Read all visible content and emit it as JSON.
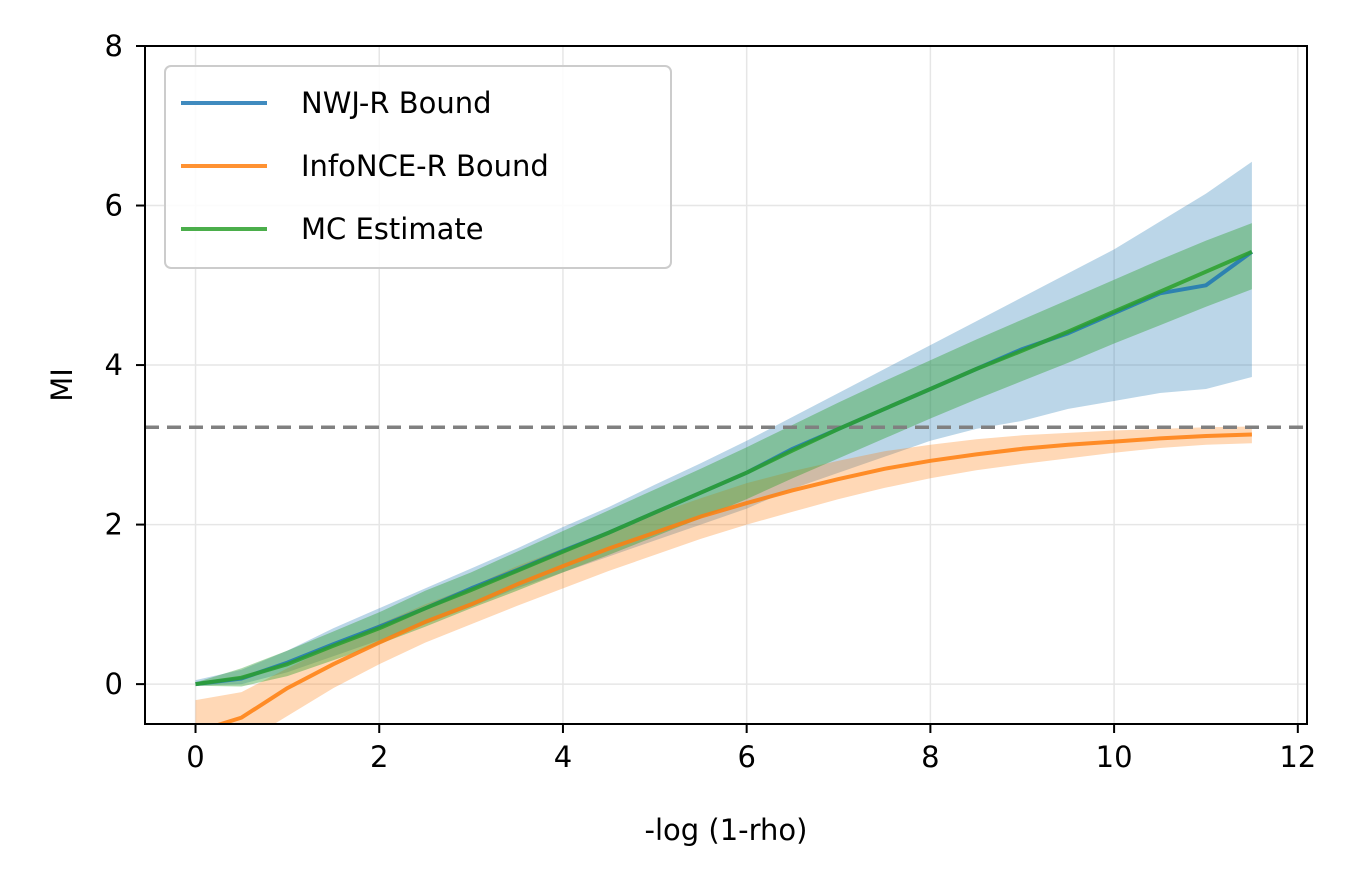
{
  "chart_data": {
    "type": "line",
    "title": "",
    "xlabel": "-log (1-rho)",
    "ylabel": "MI",
    "xlim": [
      -0.55,
      12.1
    ],
    "ylim": [
      -0.5,
      8
    ],
    "xticks": [
      "0",
      "2",
      "4",
      "6",
      "8",
      "10",
      "12"
    ],
    "yticks": [
      "0",
      "2",
      "4",
      "6",
      "8"
    ],
    "grid": true,
    "legend_position": "top-left",
    "reference_line": {
      "y": 3.22,
      "style": "dashed",
      "color": "#808080"
    },
    "x": [
      0,
      0.5,
      1,
      1.5,
      2,
      2.5,
      3,
      3.5,
      4,
      4.5,
      5,
      5.5,
      6,
      6.5,
      7,
      7.5,
      8,
      8.5,
      9,
      9.5,
      10,
      10.5,
      11,
      11.5
    ],
    "series": [
      {
        "name": "NWJ-R Bound",
        "color": "#1f77b4",
        "values": [
          0.0,
          0.07,
          0.27,
          0.5,
          0.72,
          0.95,
          1.2,
          1.43,
          1.67,
          1.9,
          2.15,
          2.4,
          2.65,
          2.95,
          3.2,
          3.45,
          3.7,
          3.95,
          4.2,
          4.4,
          4.65,
          4.9,
          5.0,
          5.42
        ],
        "lower": [
          -0.02,
          0.0,
          0.15,
          0.35,
          0.55,
          0.75,
          0.97,
          1.2,
          1.4,
          1.6,
          1.8,
          2.0,
          2.2,
          2.45,
          2.65,
          2.85,
          3.05,
          3.2,
          3.3,
          3.45,
          3.55,
          3.65,
          3.7,
          3.85
        ],
        "upper": [
          0.05,
          0.18,
          0.42,
          0.7,
          0.95,
          1.2,
          1.45,
          1.7,
          1.97,
          2.22,
          2.5,
          2.77,
          3.05,
          3.35,
          3.65,
          3.95,
          4.25,
          4.55,
          4.85,
          5.15,
          5.45,
          5.8,
          6.15,
          6.55
        ]
      },
      {
        "name": "InfoNCE-R Bound",
        "color": "#ff7f0e",
        "values": [
          -0.6,
          -0.42,
          -0.05,
          0.25,
          0.52,
          0.78,
          1.0,
          1.25,
          1.48,
          1.7,
          1.9,
          2.1,
          2.27,
          2.43,
          2.57,
          2.7,
          2.8,
          2.88,
          2.95,
          3.0,
          3.04,
          3.08,
          3.11,
          3.13
        ],
        "lower": [
          -0.9,
          -0.75,
          -0.4,
          -0.05,
          0.25,
          0.52,
          0.75,
          0.98,
          1.2,
          1.42,
          1.62,
          1.82,
          2.0,
          2.16,
          2.32,
          2.46,
          2.58,
          2.68,
          2.76,
          2.83,
          2.9,
          2.96,
          3.0,
          3.02
        ],
        "upper": [
          -0.2,
          -0.1,
          0.2,
          0.48,
          0.75,
          1.0,
          1.22,
          1.48,
          1.7,
          1.92,
          2.13,
          2.33,
          2.52,
          2.67,
          2.8,
          2.92,
          3.0,
          3.07,
          3.12,
          3.15,
          3.18,
          3.2,
          3.22,
          3.23
        ]
      },
      {
        "name": "MC Estimate",
        "color": "#2ca02c",
        "values": [
          0.0,
          0.08,
          0.25,
          0.48,
          0.7,
          0.95,
          1.18,
          1.42,
          1.66,
          1.9,
          2.15,
          2.4,
          2.65,
          2.93,
          3.2,
          3.45,
          3.7,
          3.95,
          4.18,
          4.42,
          4.67,
          4.92,
          5.17,
          5.42
        ],
        "lower": [
          -0.02,
          -0.03,
          0.1,
          0.3,
          0.5,
          0.72,
          0.95,
          1.17,
          1.4,
          1.62,
          1.85,
          2.08,
          2.32,
          2.58,
          2.83,
          3.08,
          3.33,
          3.57,
          3.8,
          4.03,
          4.27,
          4.5,
          4.73,
          4.95
        ],
        "upper": [
          0.02,
          0.2,
          0.42,
          0.66,
          0.9,
          1.17,
          1.4,
          1.66,
          1.92,
          2.18,
          2.44,
          2.7,
          2.97,
          3.25,
          3.53,
          3.8,
          4.06,
          4.32,
          4.57,
          4.82,
          5.07,
          5.32,
          5.56,
          5.78
        ]
      }
    ]
  }
}
